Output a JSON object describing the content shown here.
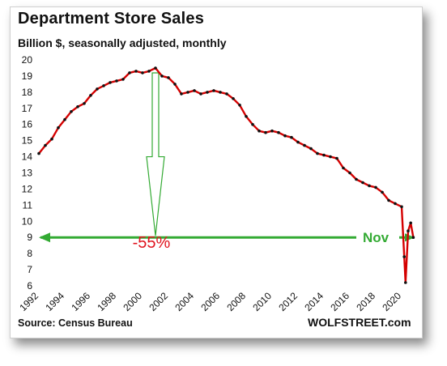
{
  "title": "Department Store Sales",
  "subtitle": "Billion $, seasonally adjusted, monthly",
  "source": "Source: Census Bureau",
  "brand": "WOLFSTREET.com",
  "annotations": {
    "drop_label": "-55%",
    "latest_label": "Nov"
  },
  "colors": {
    "line": "#d40000",
    "markers": "#111111",
    "arrow": "#33aa33",
    "drop_label": "#e0141e"
  },
  "chart_data": {
    "type": "line",
    "title": "Department Store Sales",
    "subtitle": "Billion $, seasonally adjusted, monthly",
    "xlabel": "",
    "ylabel": "",
    "xlim": [
      1992,
      2021
    ],
    "ylim": [
      6,
      20
    ],
    "yticks": [
      6,
      7,
      8,
      9,
      10,
      11,
      12,
      13,
      14,
      15,
      16,
      17,
      18,
      19,
      20
    ],
    "xticks": [
      "1992",
      "1994",
      "1996",
      "1998",
      "2000",
      "2002",
      "2004",
      "2006",
      "2008",
      "2010",
      "2012",
      "2014",
      "2016",
      "2018",
      "2020"
    ],
    "grid": false,
    "reference_line": {
      "y": 9.0,
      "label": "Nov"
    },
    "annotation": {
      "text": "-55%",
      "from": {
        "x": 2001.0,
        "y": 19.9
      },
      "to": {
        "y": 9.0
      }
    },
    "series": [
      {
        "x": [
          1992.0,
          1992.5,
          1993.0,
          1993.5,
          1994.0,
          1994.5,
          1995.0,
          1995.5,
          1996.0,
          1996.5,
          1997.0,
          1997.5,
          1998.0,
          1998.5,
          1999.0,
          1999.5,
          2000.0,
          2000.5,
          2001.0,
          2001.5,
          2002.0,
          2002.5,
          2003.0,
          2003.5,
          2004.0,
          2004.5,
          2005.0,
          2005.5,
          2006.0,
          2006.5,
          2007.0,
          2007.5,
          2008.0,
          2008.5,
          2009.0,
          2009.5,
          2010.0,
          2010.5,
          2011.0,
          2011.5,
          2012.0,
          2012.5,
          2013.0,
          2013.5,
          2014.0,
          2014.5,
          2015.0,
          2015.5,
          2016.0,
          2016.5,
          2017.0,
          2017.5,
          2018.0,
          2018.5,
          2019.0,
          2019.5,
          2020.0,
          2020.2,
          2020.3,
          2020.5,
          2020.7,
          2020.9
        ],
        "y": [
          14.2,
          14.7,
          15.1,
          15.8,
          16.3,
          16.8,
          17.1,
          17.3,
          17.8,
          18.2,
          18.4,
          18.6,
          18.7,
          18.8,
          19.2,
          19.3,
          19.2,
          19.3,
          19.5,
          19.0,
          18.9,
          18.5,
          17.9,
          18.0,
          18.1,
          17.9,
          18.0,
          18.1,
          18.0,
          17.9,
          17.6,
          17.2,
          16.5,
          16.0,
          15.6,
          15.5,
          15.6,
          15.5,
          15.3,
          15.2,
          14.9,
          14.7,
          14.5,
          14.2,
          14.1,
          14.0,
          13.9,
          13.3,
          13.0,
          12.6,
          12.4,
          12.2,
          12.1,
          11.8,
          11.3,
          11.1,
          10.9,
          7.8,
          6.2,
          9.4,
          9.9,
          9.0
        ]
      }
    ]
  }
}
